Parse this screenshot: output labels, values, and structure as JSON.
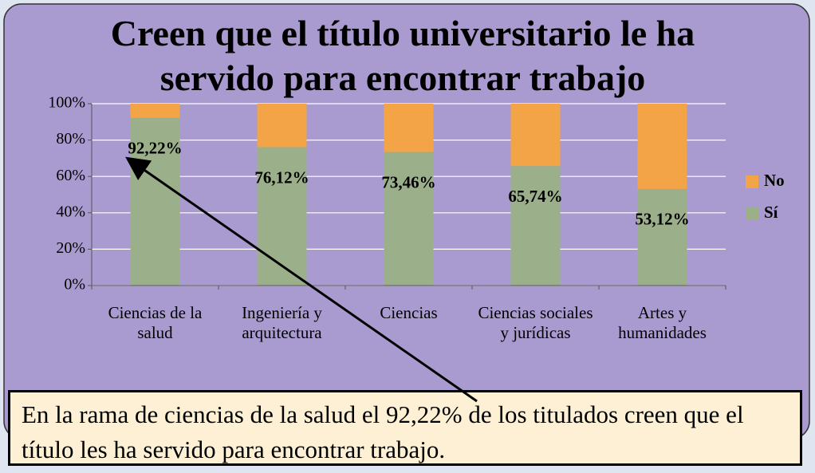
{
  "chart_data": {
    "type": "stacked_bar",
    "title": "Creen que el título universitario le ha servido para encontrar trabajo",
    "categories": [
      "Ciencias de la salud",
      "Ingeniería y arquitectura",
      "Ciencias",
      "Ciencias sociales y jurídicas",
      "Artes y humanidades"
    ],
    "series": [
      {
        "name": "Sí",
        "color": "#9bb08a",
        "values": [
          92.22,
          76.12,
          73.46,
          65.74,
          53.12
        ],
        "value_labels": [
          "92,22%",
          "76,12%",
          "73,46%",
          "65,74%",
          "53,12%"
        ]
      },
      {
        "name": "No",
        "color": "#f3a447",
        "values": [
          7.78,
          23.88,
          26.54,
          34.26,
          46.88
        ]
      }
    ],
    "ylim": [
      0,
      100
    ],
    "yticks": [
      {
        "value": 0,
        "label": "0%"
      },
      {
        "value": 20,
        "label": "20%"
      },
      {
        "value": 40,
        "label": "40%"
      },
      {
        "value": 60,
        "label": "60%"
      },
      {
        "value": 80,
        "label": "80%"
      },
      {
        "value": 100,
        "label": "100%"
      }
    ],
    "grid": true,
    "legend": "right",
    "annotation": "En la rama de ciencias de la salud el 92,22% de los titulados creen que el título les ha servido para encontrar trabajo."
  }
}
